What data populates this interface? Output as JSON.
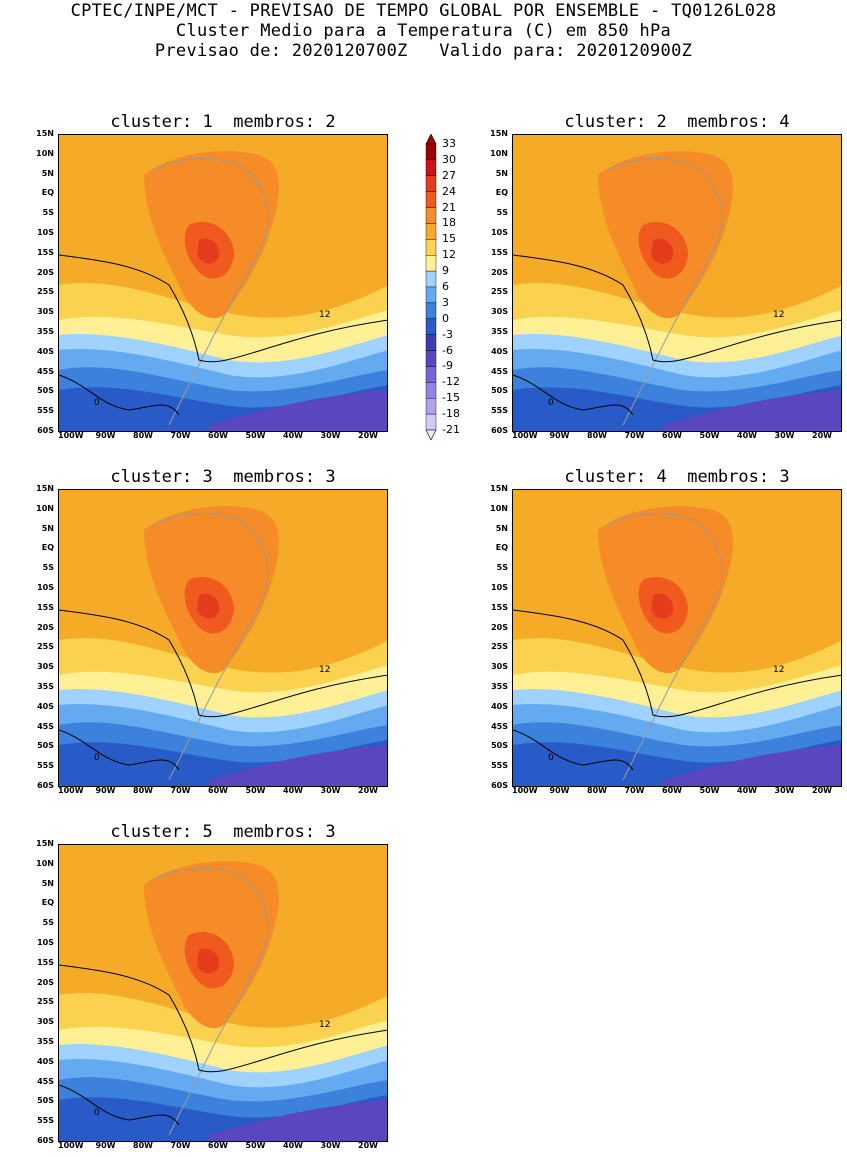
{
  "header": {
    "line1": "CPTEC/INPE/MCT - PREVISAO DE TEMPO GLOBAL POR ENSEMBLE - TQ0126L028",
    "line2": "Cluster Medio para a Temperatura (C) em 850 hPa",
    "line3": "Previsao de: 2020120700Z   Valido para: 2020120900Z"
  },
  "panels": [
    {
      "title": "cluster: 1  membros: 2"
    },
    {
      "title": "cluster: 2  membros: 4"
    },
    {
      "title": "cluster: 3  membros: 3"
    },
    {
      "title": "cluster: 4  membros: 3"
    },
    {
      "title": "cluster: 5  membros: 3"
    }
  ],
  "axes": {
    "lat_labels": [
      "15N",
      "10N",
      "5N",
      "EQ",
      "5S",
      "10S",
      "15S",
      "20S",
      "25S",
      "30S",
      "35S",
      "40S",
      "45S",
      "50S",
      "55S",
      "60S"
    ],
    "lon_labels": [
      "100W",
      "90W",
      "80W",
      "70W",
      "60W",
      "50W",
      "40W",
      "30W",
      "20W"
    ]
  },
  "colorbar": {
    "levels": [
      "33",
      "30",
      "27",
      "24",
      "21",
      "18",
      "15",
      "12",
      "9",
      "6",
      "3",
      "0",
      "-3",
      "-6",
      "-9",
      "-12",
      "-15",
      "-18",
      "-21"
    ],
    "colors": [
      "#a00000",
      "#c81414",
      "#e63c1e",
      "#f05a1e",
      "#f58c28",
      "#f5aa28",
      "#fad250",
      "#fff096",
      "#a0d2ff",
      "#64aaf0",
      "#3c82dc",
      "#285ac8",
      "#3c3cb4",
      "#5a46be",
      "#7864d2",
      "#9682e6",
      "#b4a0f0",
      "#d2c8fa"
    ]
  },
  "contour_labels": [
    "12",
    "0"
  ]
}
